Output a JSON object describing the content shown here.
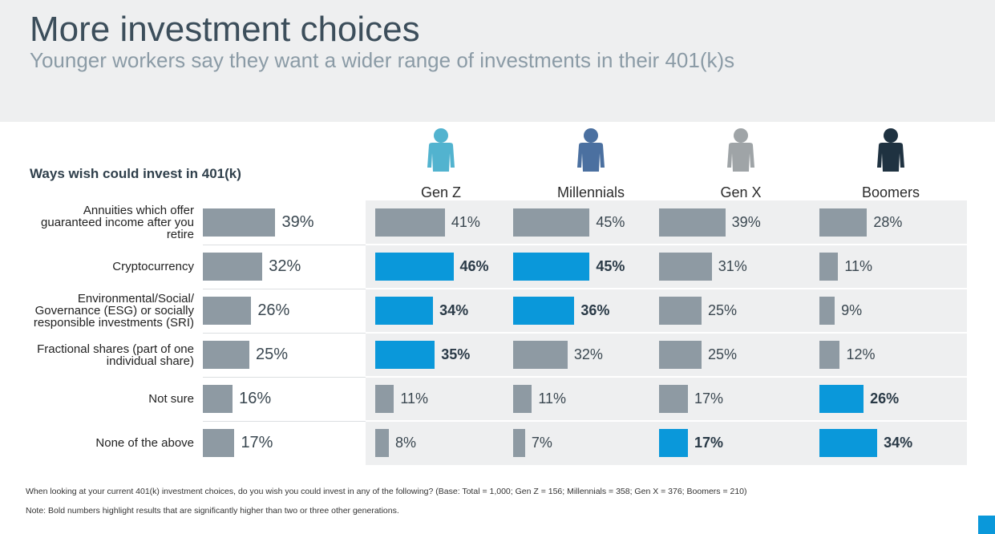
{
  "header": {
    "title": "More investment choices",
    "subtitle": "Younger workers say they want a wider range of investments in their 401(k)s"
  },
  "chart_data": {
    "type": "bar",
    "orientation": "horizontal",
    "title": "Ways wish could invest in 401(k)",
    "categories": [
      "Annuities which offer guaranteed income after you retire",
      "Cryptocurrency",
      "Environmental/Social/ Governance (ESG) or socially responsible investments (SRI)",
      "Fractional shares (part of one individual share)",
      "Not sure",
      "None of the above"
    ],
    "color": "#8e9aa3",
    "highlight_color": "#0a98da",
    "series": [
      {
        "values": [
          39,
          32,
          26,
          25,
          16,
          17
        ],
        "value_labels": [
          "39%",
          "32%",
          "26%",
          "25%",
          "16%",
          "17%"
        ],
        "highlight": [
          false,
          false,
          false,
          false,
          false,
          false
        ]
      },
      {
        "name": "Gen Z",
        "icon_color": "#52b3cf",
        "values": [
          41,
          46,
          34,
          35,
          11,
          8
        ],
        "value_labels": [
          "41%",
          "46%",
          "34%",
          "35%",
          "11%",
          "8%"
        ],
        "highlight": [
          false,
          true,
          true,
          true,
          false,
          false
        ]
      },
      {
        "name": "Millennials",
        "icon_color": "#4b70a0",
        "values": [
          45,
          45,
          36,
          32,
          11,
          7
        ],
        "value_labels": [
          "45%",
          "45%",
          "36%",
          "32%",
          "11%",
          "7%"
        ],
        "highlight": [
          false,
          true,
          true,
          false,
          false,
          false
        ]
      },
      {
        "name": "Gen X",
        "icon_color": "#9fa4a7",
        "values": [
          39,
          31,
          25,
          25,
          17,
          17
        ],
        "value_labels": [
          "39%",
          "31%",
          "25%",
          "25%",
          "17%",
          "17%"
        ],
        "highlight": [
          false,
          false,
          false,
          false,
          false,
          true
        ]
      },
      {
        "name": "Boomers",
        "icon_color": "#1f3241",
        "values": [
          28,
          11,
          9,
          12,
          26,
          34
        ],
        "value_labels": [
          "28%",
          "11%",
          "9%",
          "12%",
          "26%",
          "34%"
        ],
        "highlight": [
          false,
          false,
          false,
          false,
          true,
          true
        ]
      }
    ]
  },
  "footnotes": [
    "When looking at your current 401(k) investment choices, do you wish you could invest in any of the following? (Base: Total = 1,000; Gen Z = 156; Millennials = 358; Gen X = 376; Boomers = 210)",
    "Note: Bold numbers highlight results that are significantly higher than two or three other generations."
  ]
}
